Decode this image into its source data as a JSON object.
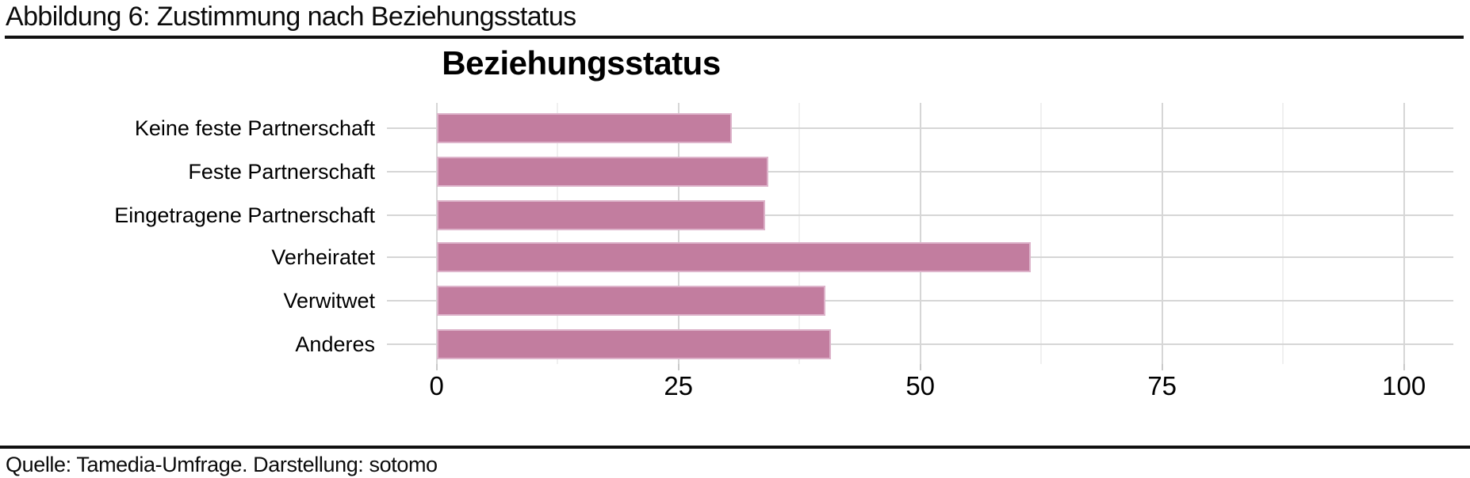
{
  "figure": {
    "caption": "Abbildung 6: Zustimmung nach Beziehungsstatus",
    "source": "Quelle: Tamedia-Umfrage. Darstellung: sotomo"
  },
  "chart_data": {
    "type": "bar",
    "orientation": "horizontal",
    "title": "Beziehungsstatus",
    "categories": [
      "Keine feste Partnerschaft",
      "Feste Partnerschaft",
      "Eingetragene Partnerschaft",
      "Verheiratet",
      "Verwitwet",
      "Anderes"
    ],
    "values": [
      30.5,
      34.3,
      33.9,
      61.4,
      40.2,
      40.7
    ],
    "xlabel": "",
    "ylabel": "",
    "xlim": [
      0,
      100
    ],
    "x_ticks": [
      "0",
      "25",
      "50",
      "75",
      "100"
    ],
    "x_tick_values": [
      0,
      25,
      50,
      75,
      100
    ],
    "x_minor_tick_values": [
      12.5,
      37.5,
      62.5,
      87.5
    ],
    "grid": "vertical major+minor, horizontal at category centers",
    "legend": "none",
    "colors": {
      "bar_fill": "#c27d9f",
      "bar_edge": "#ddb3ca",
      "grid_major": "#d6d6d6",
      "grid_minor": "#f0f0f0",
      "axis_tick": "#c9c9c9",
      "rule": "#111111",
      "text": "#000000",
      "background": "#ffffff"
    }
  }
}
